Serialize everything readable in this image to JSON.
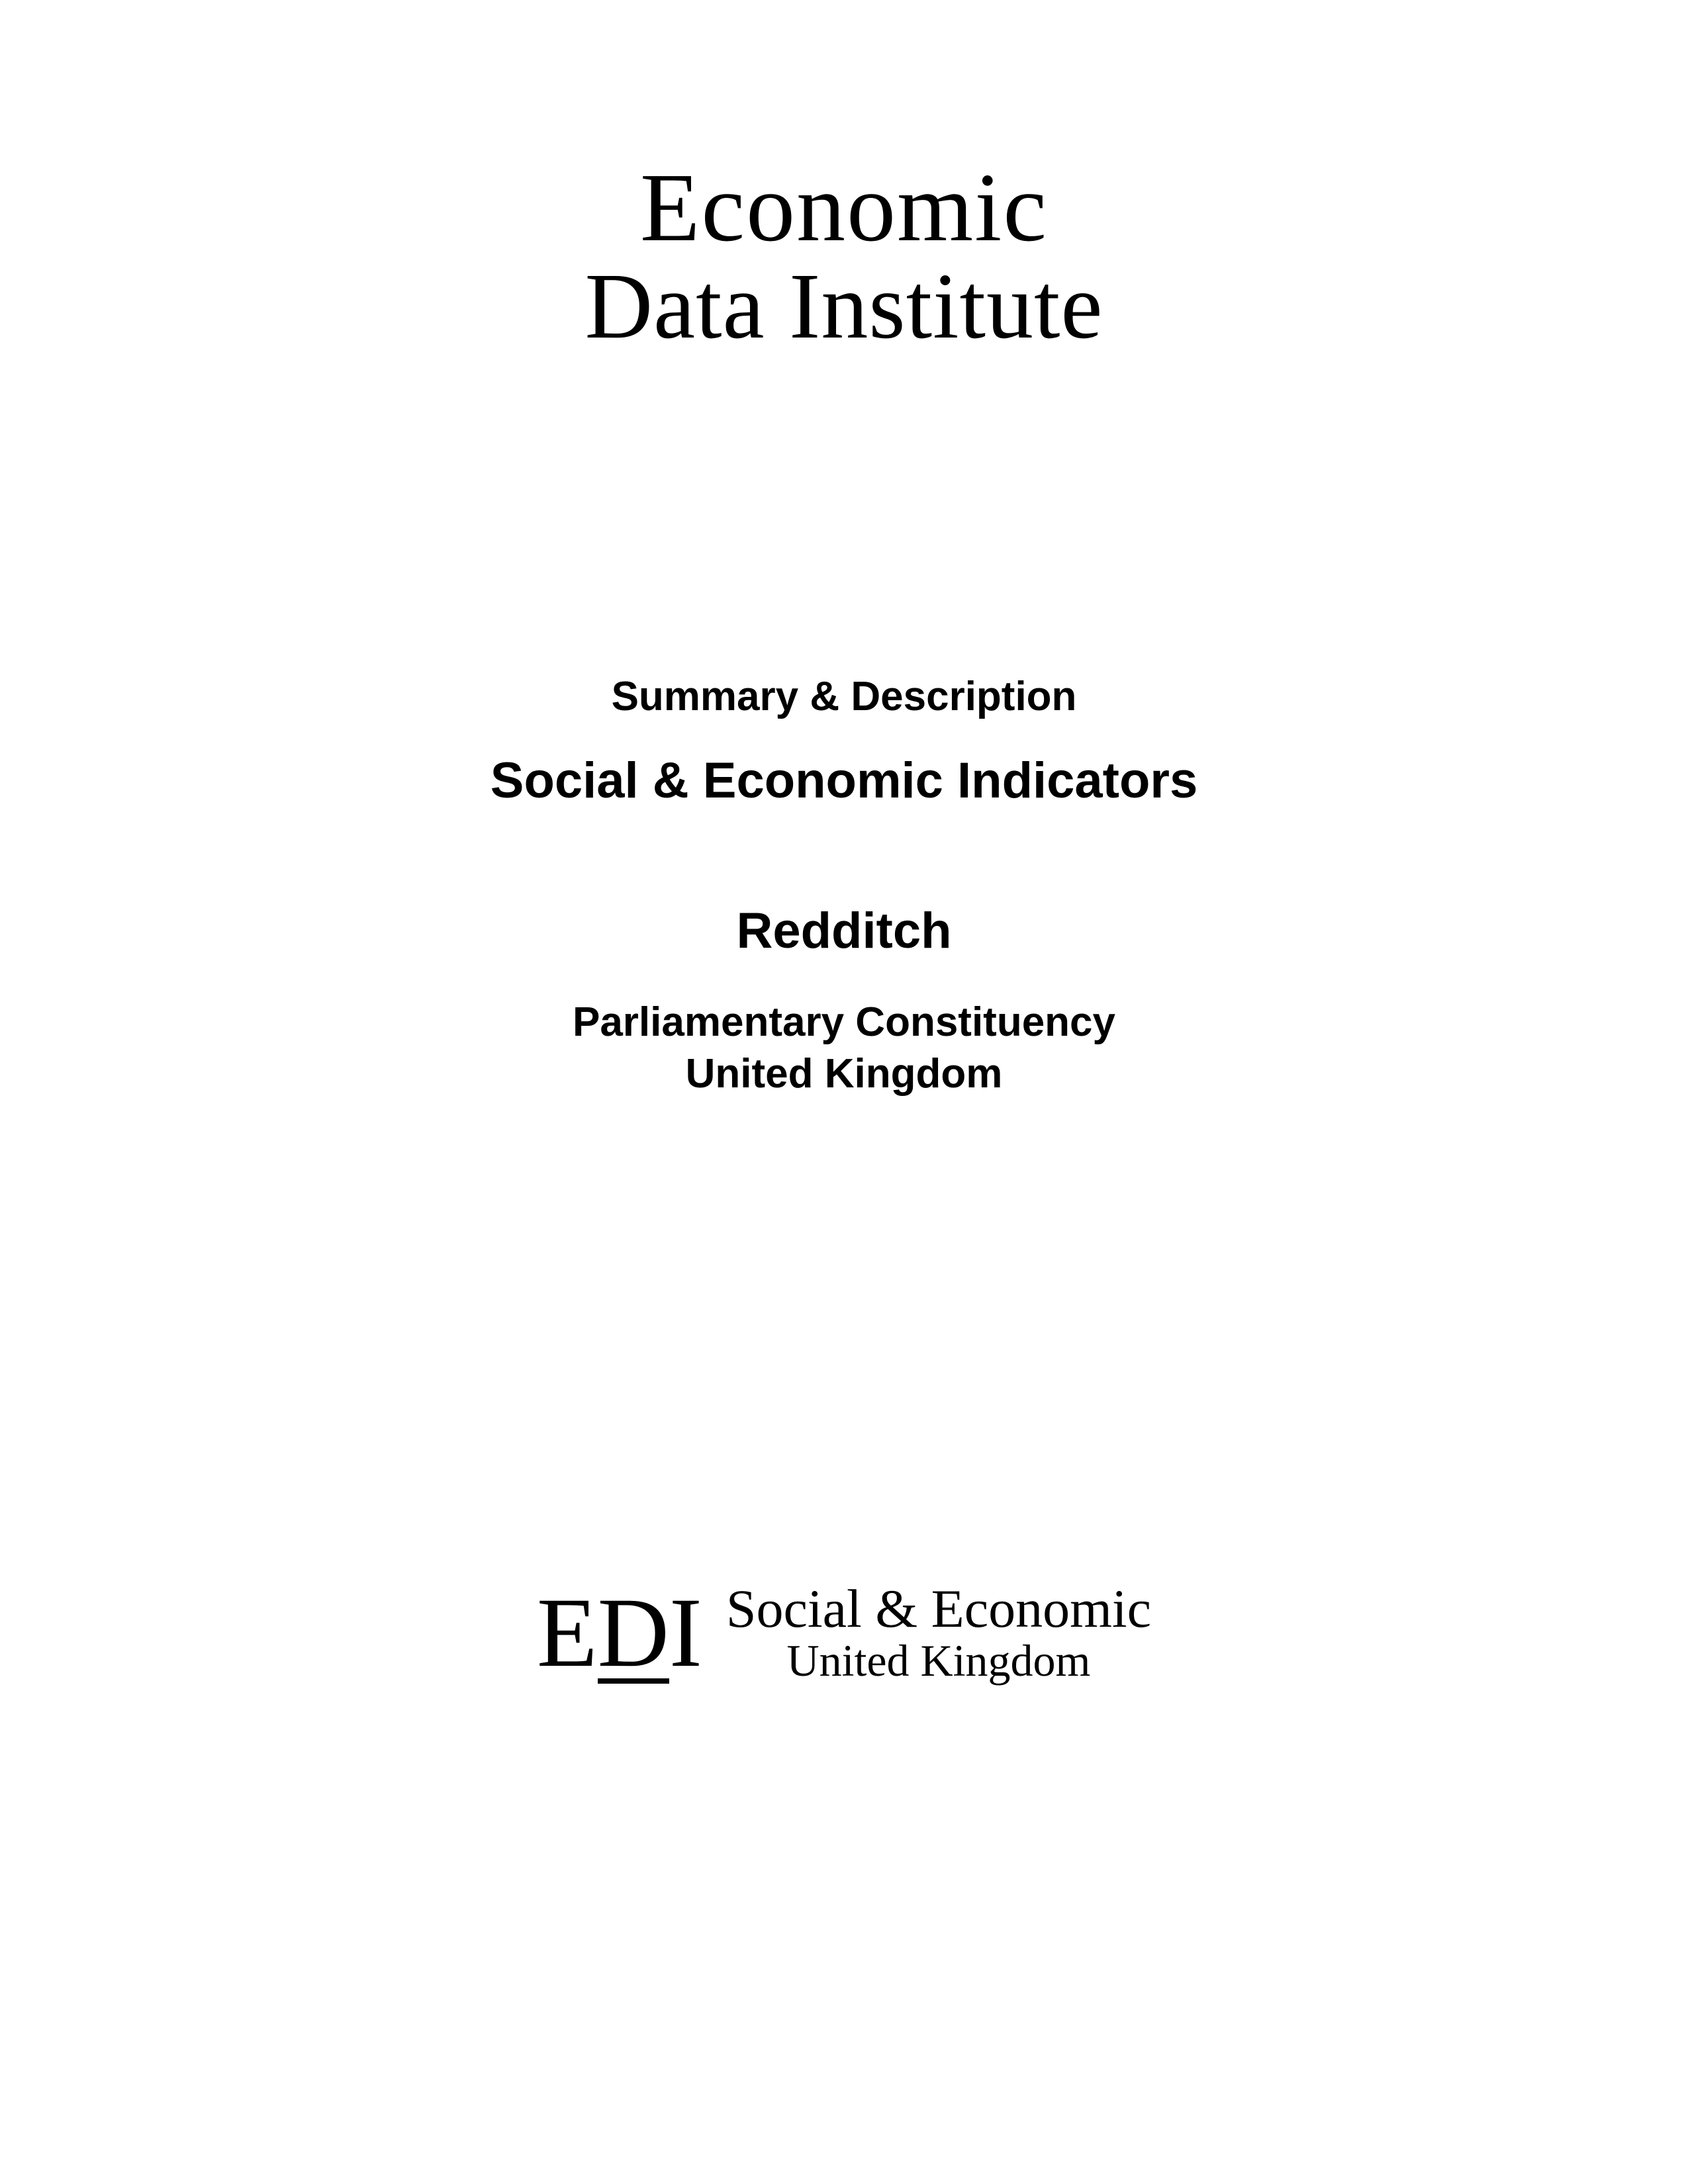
{
  "top_logo": {
    "line1": "Economic",
    "line2": "Data Institute"
  },
  "summary": {
    "label": "Summary & Description",
    "title": "Social & Economic Indicators",
    "location": "Redditch",
    "region_line1": "Parliamentary Constituency",
    "region_line2": "United Kingdom"
  },
  "bottom_logo": {
    "mark_e": "E",
    "mark_d": "D",
    "mark_i": "I",
    "text_line1": "Social & Economic",
    "text_line2": "United Kingdom"
  },
  "colors": {
    "background": "#ffffff",
    "text": "#000000"
  }
}
